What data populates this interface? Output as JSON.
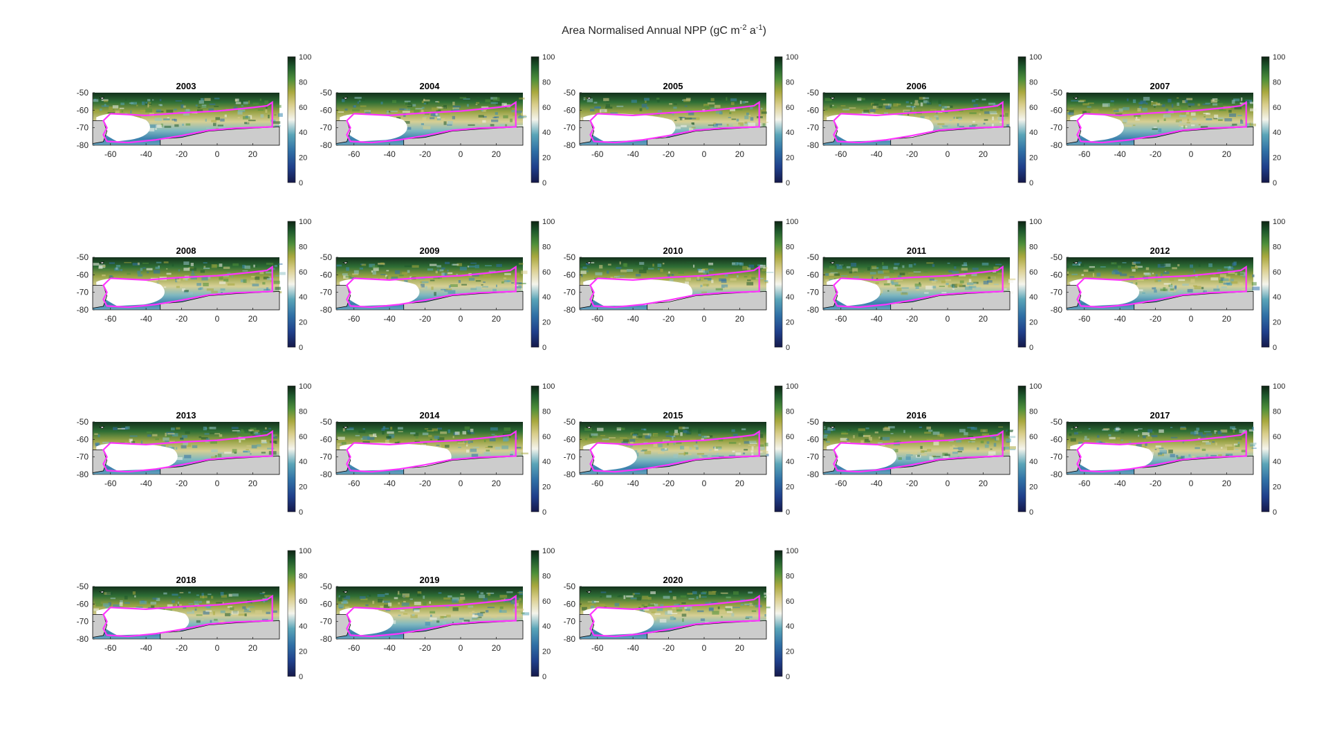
{
  "figure": {
    "title": "Area Normalised Annual NPP (gC m",
    "title_sup1": "-2",
    "title_mid": " a",
    "title_sup2": "-1",
    "title_end": ")"
  },
  "chart_data": {
    "type": "heatmap",
    "title": "Area Normalised Annual NPP (gC m-2 a-1)",
    "panels": [
      "2003",
      "2004",
      "2005",
      "2006",
      "2007",
      "2008",
      "2009",
      "2010",
      "2011",
      "2012",
      "2013",
      "2014",
      "2015",
      "2016",
      "2017",
      "2018",
      "2019",
      "2020"
    ],
    "x_ticks": [
      -60,
      -40,
      -20,
      0,
      20
    ],
    "y_ticks": [
      -50,
      -60,
      -70,
      -80
    ],
    "xlim": [
      -70,
      35
    ],
    "ylim": [
      -80,
      -50
    ],
    "colorbar": {
      "ticks": [
        100,
        80,
        60,
        40,
        20,
        0
      ],
      "range": [
        0,
        100
      ],
      "colormap": "dark-blue-teal-white-yellow-green"
    },
    "region_outline_color": "#ff33ff",
    "land_color": "#cccccc",
    "no_data_color": "#ffffff",
    "grid": false
  }
}
